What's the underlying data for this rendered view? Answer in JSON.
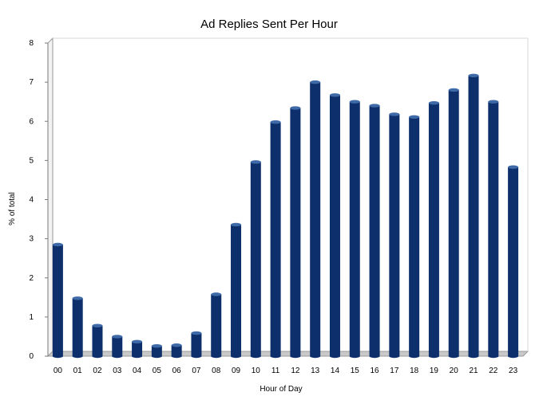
{
  "chart_data": {
    "type": "bar",
    "title": "Ad Replies Sent Per Hour",
    "xlabel": "Hour of Day",
    "ylabel": "% of total",
    "categories": [
      "00",
      "01",
      "02",
      "03",
      "04",
      "05",
      "06",
      "07",
      "08",
      "09",
      "10",
      "11",
      "12",
      "13",
      "14",
      "15",
      "16",
      "17",
      "18",
      "19",
      "20",
      "21",
      "22",
      "23"
    ],
    "values": [
      2.85,
      1.48,
      0.78,
      0.5,
      0.37,
      0.26,
      0.28,
      0.59,
      1.58,
      3.36,
      4.96,
      5.98,
      6.34,
      7.0,
      6.67,
      6.5,
      6.4,
      6.18,
      6.11,
      6.47,
      6.8,
      7.17,
      6.5,
      4.83
    ],
    "ylim": [
      0,
      8
    ],
    "yticks": [
      "0",
      "1",
      "2",
      "3",
      "4",
      "5",
      "6",
      "7",
      "8"
    ],
    "grid": false,
    "legend": "none",
    "colors": {
      "bar": "#0d2f6b",
      "bar_top": "#3f6aa8",
      "floor": "#c9c9c9",
      "wall": "#ffffff"
    }
  }
}
